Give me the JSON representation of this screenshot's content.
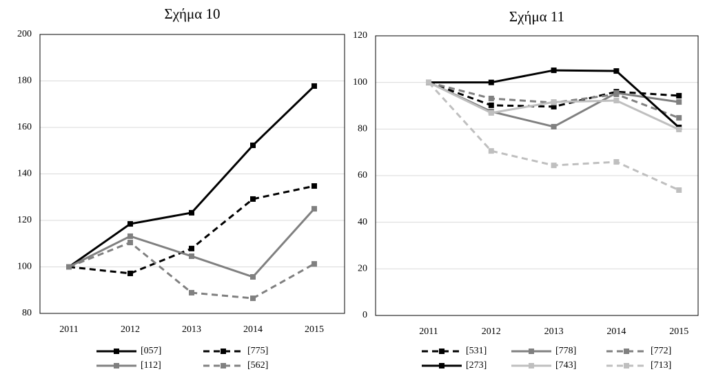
{
  "chart_data": [
    {
      "type": "line",
      "title": "Σχήμα 10",
      "categories": [
        "2011",
        "2012",
        "2013",
        "2014",
        "2015"
      ],
      "ylim": [
        80,
        200
      ],
      "yticks": [
        80,
        100,
        120,
        140,
        160,
        180,
        200
      ],
      "grid": true,
      "series": [
        {
          "name": "[057]",
          "color": "#000000",
          "dashed": false,
          "values": [
            100,
            118.5,
            123.3,
            152.3,
            177.8
          ]
        },
        {
          "name": "[775]",
          "color": "#000000",
          "dashed": true,
          "values": [
            100,
            97.2,
            107.9,
            129.2,
            134.8
          ]
        },
        {
          "name": "[112]",
          "color": "#808080",
          "dashed": false,
          "values": [
            100,
            113.2,
            104.6,
            95.7,
            125
          ]
        },
        {
          "name": "[562]",
          "color": "#808080",
          "dashed": true,
          "values": [
            100,
            110.5,
            88.9,
            86.5,
            101.3
          ]
        }
      ]
    },
    {
      "type": "line",
      "title": "Σχήμα 11",
      "categories": [
        "2011",
        "2012",
        "2013",
        "2014",
        "2015"
      ],
      "ylim": [
        0,
        120
      ],
      "yticks": [
        0,
        20,
        40,
        60,
        80,
        100,
        120
      ],
      "grid": true,
      "series": [
        {
          "name": "[531]",
          "color": "#000000",
          "dashed": true,
          "values": [
            100,
            90.2,
            89.6,
            96,
            94.3
          ]
        },
        {
          "name": "[778]",
          "color": "#808080",
          "dashed": false,
          "values": [
            100,
            87.5,
            81,
            95.5,
            91.6
          ]
        },
        {
          "name": "[772]",
          "color": "#808080",
          "dashed": true,
          "values": [
            100,
            93.1,
            91.3,
            94.9,
            84.8
          ]
        },
        {
          "name": "[273]",
          "color": "#000000",
          "dashed": false,
          "values": [
            100,
            100,
            105.2,
            104.9,
            80.7
          ]
        },
        {
          "name": "[743]",
          "color": "#bfbfbf",
          "dashed": false,
          "values": [
            100,
            86.9,
            91.6,
            92.2,
            79.8
          ]
        },
        {
          "name": "[713]",
          "color": "#bfbfbf",
          "dashed": true,
          "values": [
            100,
            70.6,
            64.4,
            65.9,
            53.8
          ]
        }
      ]
    }
  ]
}
